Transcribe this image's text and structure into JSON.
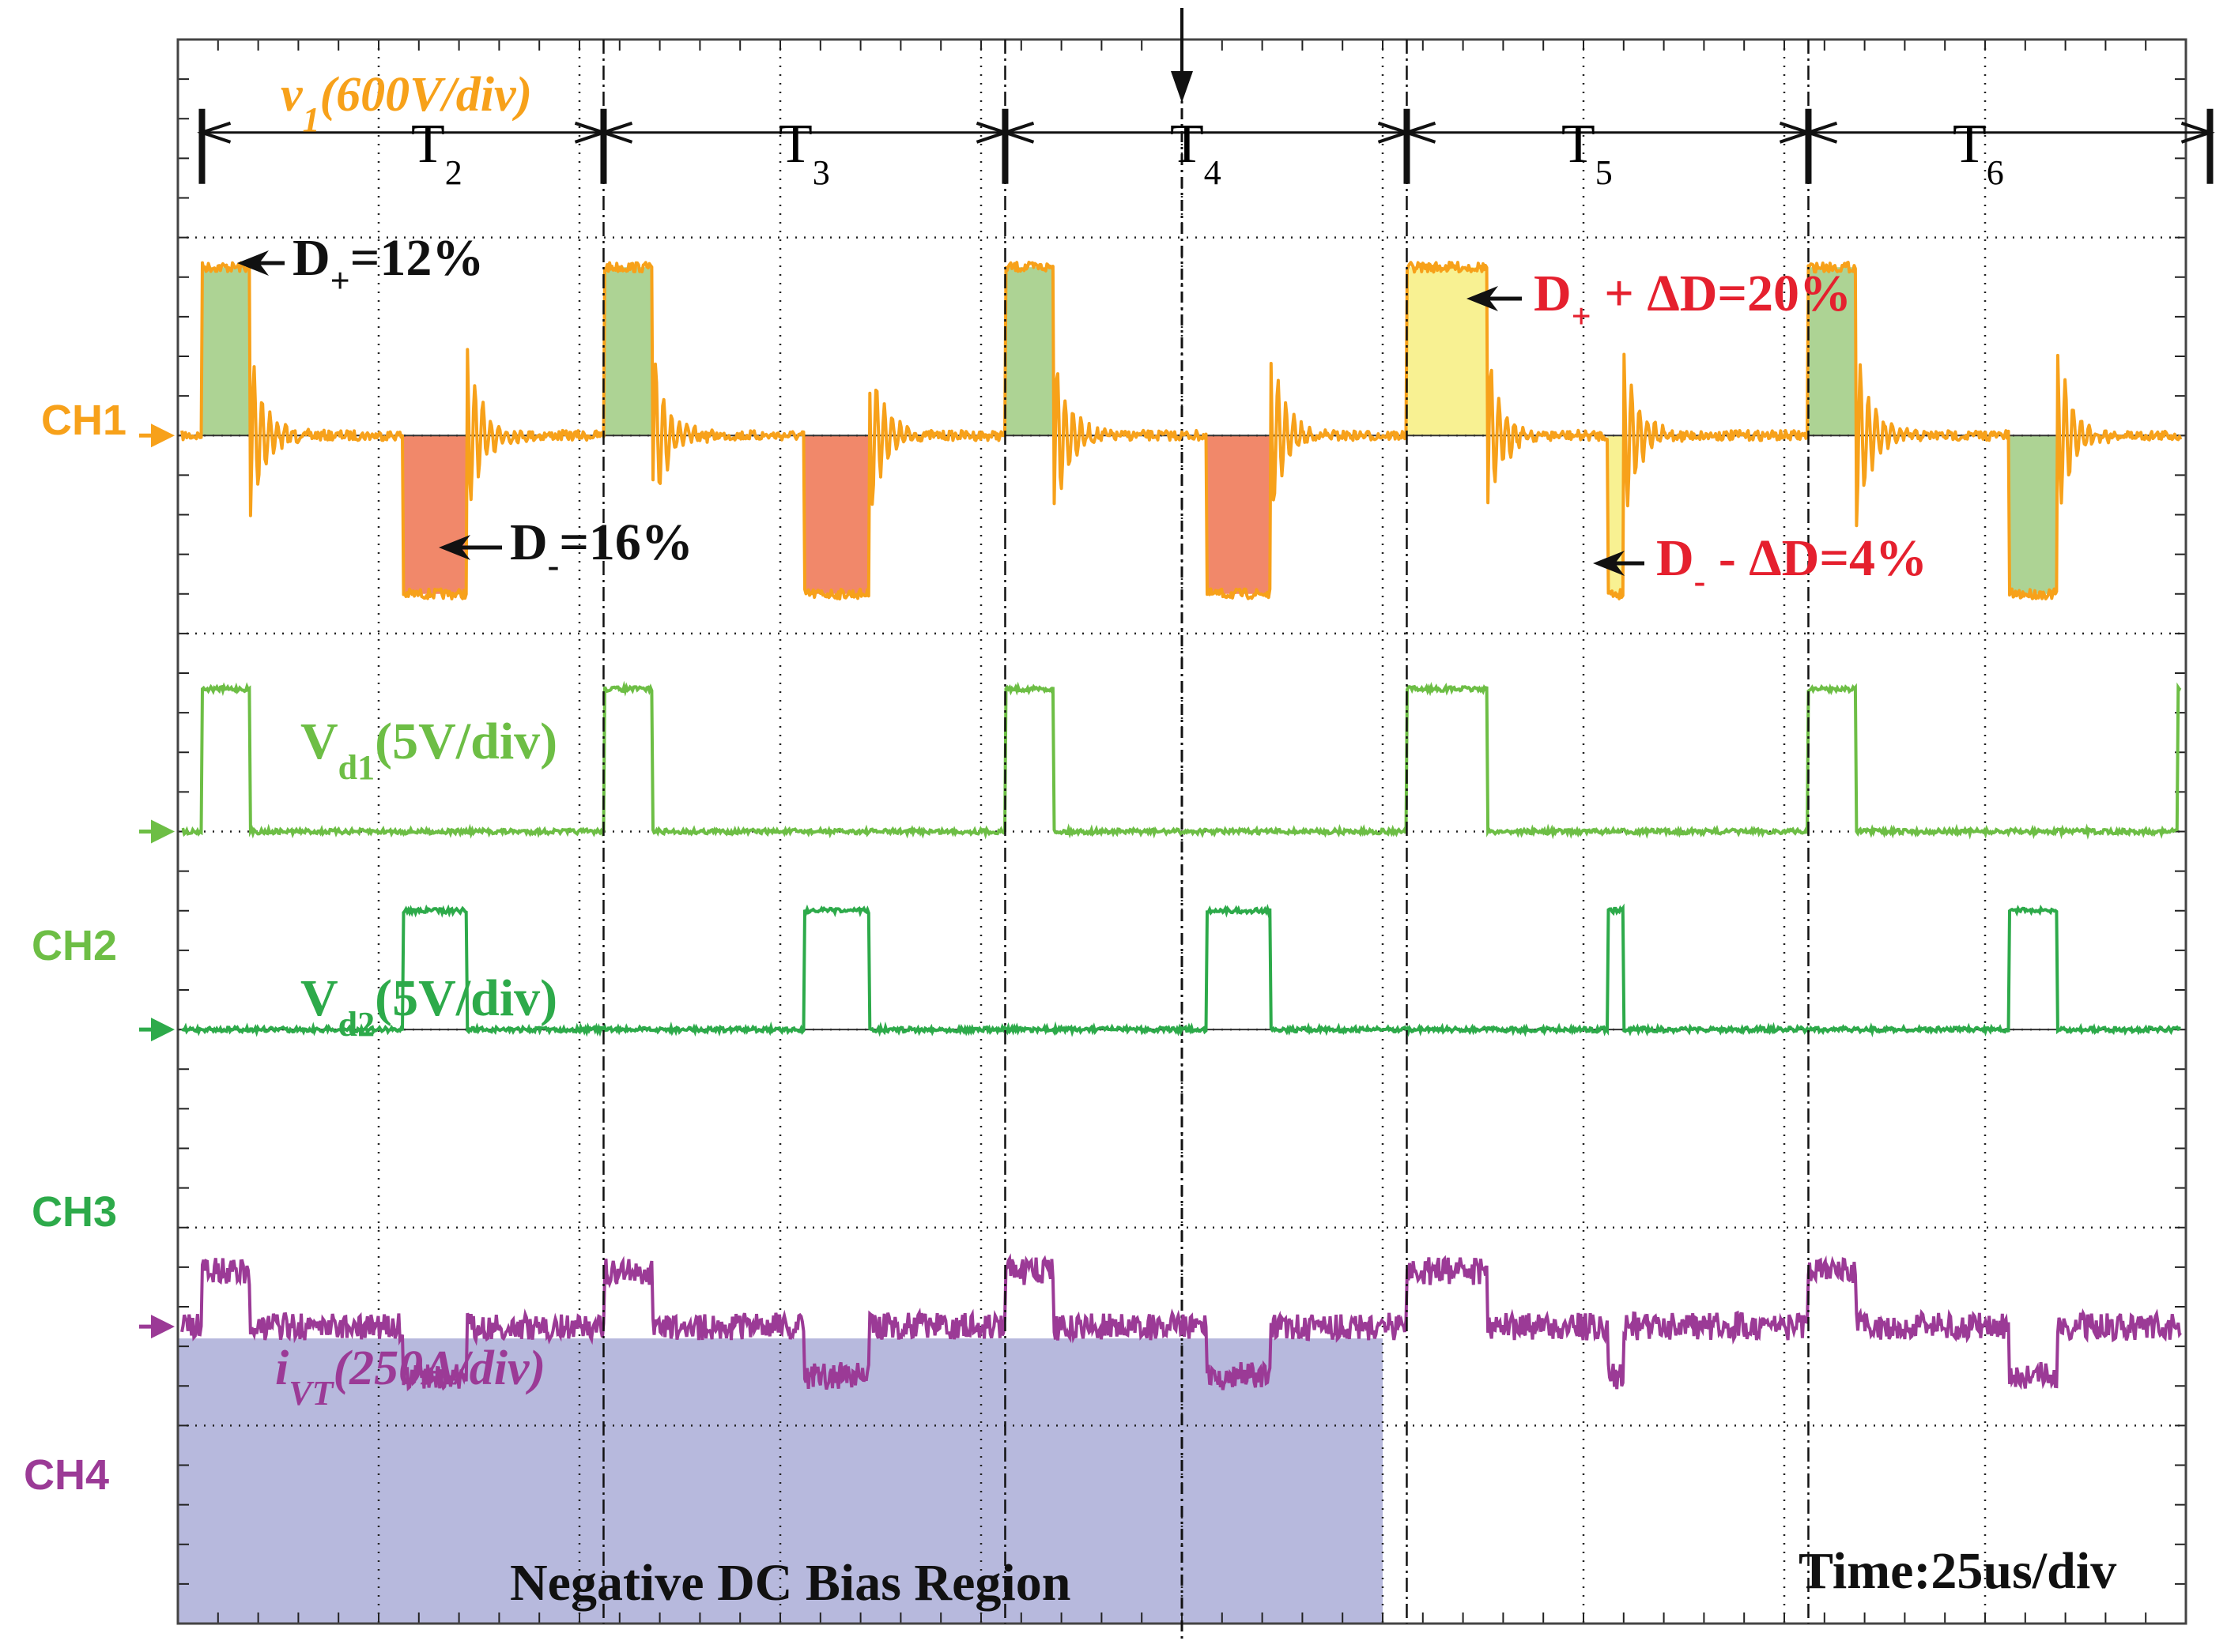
{
  "chart_data": {
    "type": "line",
    "title": "",
    "time_scale": "Time:25us/div",
    "divisions": {
      "x": 10,
      "y": 8
    },
    "grid": true,
    "channels": [
      {
        "name": "CH1",
        "color": "#F7A11A",
        "label_main": "v",
        "label_sub": "1",
        "label_scale": "(600V/div)",
        "baseline_div": 2
      },
      {
        "name": "CH2",
        "color": "#6DBE45",
        "label_main": "V",
        "label_sub": "d1",
        "label_scale": "(5V/div)",
        "baseline_div": 4
      },
      {
        "name": "CH3",
        "color": "#2DAA4A",
        "label_main": "V",
        "label_sub": "d2",
        "label_scale": "(5V/div)",
        "baseline_div": 5
      },
      {
        "name": "CH4",
        "color": "#9B3A96",
        "label_main": "i",
        "label_sub": "VT",
        "label_scale": "(250A/div)",
        "baseline_div": 6.5
      }
    ],
    "periods": [
      {
        "main": "T",
        "sub": "2"
      },
      {
        "main": "T",
        "sub": "3"
      },
      {
        "main": "T",
        "sub": "4"
      },
      {
        "main": "T",
        "sub": "5"
      },
      {
        "main": "T",
        "sub": "6"
      }
    ],
    "period_divisions": 2,
    "duty_cycles": [
      {
        "period": "T2",
        "d_plus_pct": 12,
        "d_minus_pct": 16
      },
      {
        "period": "T3",
        "d_plus_pct": 12,
        "d_minus_pct": 16
      },
      {
        "period": "T4",
        "d_plus_pct": 12,
        "d_minus_pct": 16
      },
      {
        "period": "T5",
        "d_plus_pct": 20,
        "d_minus_pct": 4
      },
      {
        "period": "T6",
        "d_plus_pct": 12,
        "d_minus_pct": 12
      }
    ],
    "amplitudes_div": {
      "ch1_pos": 0.85,
      "ch1_neg": -0.8,
      "ch2_high": 0.72,
      "ch3_high": 0.6,
      "ch4_pos": 0.28,
      "ch4_neg": -0.25
    },
    "annotations": {
      "d_plus": {
        "main": "D",
        "sub": "+",
        "rest": "=12%"
      },
      "d_minus": {
        "main": "D",
        "sub": "-",
        "rest": "=16%"
      },
      "d_plus_delta": {
        "main": "D",
        "sub": "+",
        "rest": " + ΔD=20%"
      },
      "d_minus_delta": {
        "main": "D",
        "sub": "-",
        "rest": " - ΔD=4%"
      },
      "negative_bias": "Negative DC Bias Region"
    },
    "colors": {
      "green_fill": "#A9D18E",
      "red_fill": "#F08262",
      "yellow_fill": "#F8F08C",
      "bias_fill": "#B7B9DD",
      "red_text": "#E5202E"
    }
  }
}
